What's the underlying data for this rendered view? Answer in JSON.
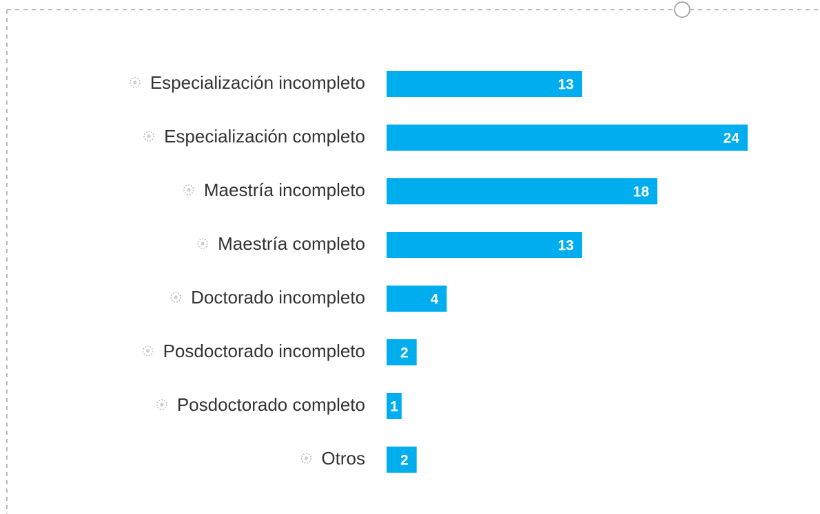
{
  "chart_data": {
    "type": "bar",
    "orientation": "horizontal",
    "categories": [
      "Especialización incompleto",
      "Especialización completo",
      "Maestría incompleto",
      "Maestría completo",
      "Doctorado incompleto",
      "Posdoctorado incompleto",
      "Posdoctorado completo",
      "Otros"
    ],
    "values": [
      13,
      24,
      18,
      13,
      4,
      2,
      1,
      2
    ],
    "color": "#00aeef",
    "xlim": [
      0,
      24
    ]
  }
}
